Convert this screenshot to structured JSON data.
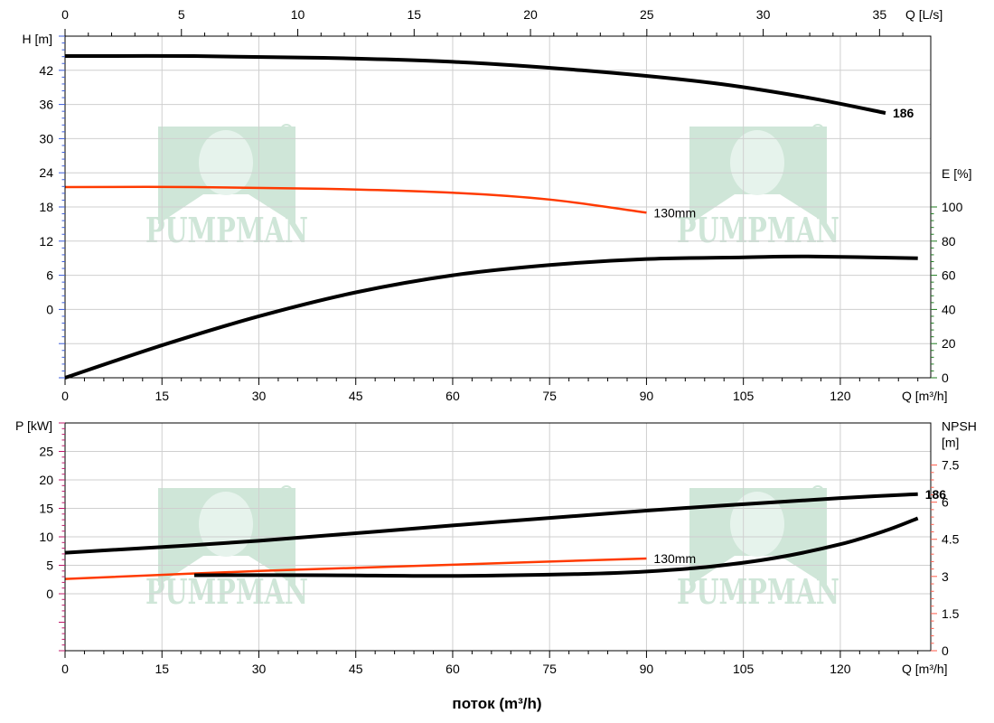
{
  "colors": {
    "head_axis": "#3a5bd8",
    "eff_axis": "#1e7b1e",
    "power_axis": "#c0186b",
    "npsh_axis": "#ff5a48",
    "large_impeller": "#000000",
    "small_impeller": "#ff3a00",
    "small_label": "#f08b7a",
    "watermark": "#cfe6d8"
  },
  "watermark_text": "PUMPMAN",
  "chart_data": [
    {
      "type": "line",
      "name": "head",
      "top_axis": {
        "label": "Q [L/s]",
        "ticks": [
          "0",
          "5",
          "10",
          "15",
          "20",
          "25",
          "30",
          "35"
        ],
        "range": [
          0,
          37.2
        ]
      },
      "x_axis": {
        "label": "Q [m³/h]",
        "ticks": [
          "0",
          "15",
          "30",
          "45",
          "60",
          "75",
          "90",
          "105",
          "120"
        ],
        "range": [
          0,
          134
        ]
      },
      "y_axis_left": {
        "label": "H [m]",
        "ticks": [
          "0",
          "6",
          "12",
          "18",
          "24",
          "30",
          "36",
          "42"
        ],
        "range": [
          -12,
          48
        ]
      },
      "y_axis_right": {
        "label": "E [%]",
        "ticks": [
          "0",
          "20",
          "40",
          "60",
          "80",
          "100"
        ],
        "range": [
          0,
          200
        ]
      },
      "grid": true,
      "series": [
        {
          "name": "186",
          "axis": "left",
          "color": "#000000",
          "x": [
            0,
            20,
            40,
            60,
            80,
            100,
            115,
            127
          ],
          "y": [
            44.5,
            44.5,
            44.2,
            43.5,
            42.0,
            39.8,
            37.2,
            34.5
          ]
        },
        {
          "name": "130mm",
          "axis": "left",
          "color": "#ff3a00",
          "x": [
            0,
            20,
            40,
            60,
            75,
            90
          ],
          "y": [
            21.5,
            21.5,
            21.2,
            20.5,
            19.3,
            17.0
          ]
        },
        {
          "axis": "right",
          "color": "#000000",
          "x": [
            0,
            15,
            30,
            45,
            60,
            75,
            90,
            105,
            115,
            132
          ],
          "y": [
            0,
            19,
            36,
            50,
            60,
            66,
            69.5,
            70.5,
            71,
            70
          ]
        }
      ],
      "series_labels": {
        "large": "186",
        "small": "130mm"
      }
    },
    {
      "type": "line",
      "name": "power",
      "x_axis": {
        "label": "Q [m³/h]",
        "ticks": [
          "0",
          "15",
          "30",
          "45",
          "60",
          "75",
          "90",
          "105",
          "120"
        ],
        "range": [
          0,
          134
        ]
      },
      "y_axis_left": {
        "label": "P [kW]",
        "ticks": [
          "0",
          "5",
          "10",
          "15",
          "20",
          "25"
        ],
        "range": [
          -10,
          30
        ]
      },
      "y_axis_right": {
        "label": "NPSH [m]",
        "label_lines": [
          "NPSH",
          "[m]"
        ],
        "ticks": [
          "0",
          "1.5",
          "3",
          "4.5",
          "6",
          "7.5"
        ],
        "range": [
          0,
          9.2
        ]
      },
      "grid": true,
      "series": [
        {
          "name": "186",
          "axis": "left",
          "color": "#000000",
          "x": [
            0,
            30,
            60,
            90,
            120,
            132
          ],
          "y": [
            7.2,
            9.3,
            12.0,
            14.6,
            16.8,
            17.5
          ]
        },
        {
          "name": "130mm",
          "axis": "left",
          "color": "#ff3a00",
          "x": [
            0,
            30,
            60,
            90
          ],
          "y": [
            2.6,
            4.0,
            5.1,
            6.2
          ]
        },
        {
          "axis": "right",
          "color": "#000000",
          "x": [
            20,
            40,
            60,
            80,
            90,
            100,
            110,
            120,
            127,
            132
          ],
          "y": [
            3.05,
            3.05,
            3.02,
            3.1,
            3.2,
            3.4,
            3.75,
            4.3,
            4.85,
            5.35
          ]
        }
      ],
      "series_labels": {
        "large": "186",
        "small": "130mm"
      }
    }
  ],
  "footer": {
    "xlabel": "поток (m³/h)"
  }
}
